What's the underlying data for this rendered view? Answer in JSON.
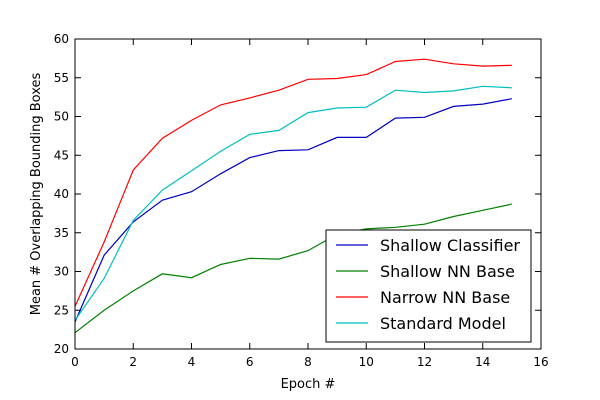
{
  "chart_data": {
    "type": "line",
    "title": "",
    "xlabel": "Epoch #",
    "ylabel": "Mean # Overlapping Bounding Boxes",
    "xlim": [
      0,
      16
    ],
    "ylim": [
      20,
      60
    ],
    "xticks": [
      0,
      2,
      4,
      6,
      8,
      10,
      12,
      14,
      16
    ],
    "yticks": [
      20,
      25,
      30,
      35,
      40,
      45,
      50,
      55,
      60
    ],
    "grid": false,
    "legend_position": "lower-right",
    "x": [
      0,
      1,
      2,
      3,
      4,
      5,
      6,
      7,
      8,
      9,
      10,
      11,
      12,
      13,
      14,
      15
    ],
    "series": [
      {
        "name": "Shallow Classifier",
        "color": "#0000bf",
        "values": [
          23.5,
          32.1,
          36.4,
          39.2,
          40.3,
          42.6,
          44.7,
          45.6,
          45.7,
          47.3,
          47.3,
          49.8,
          49.9,
          51.3,
          51.6,
          52.3
        ]
      },
      {
        "name": "Shallow NN Base",
        "color": "#008000",
        "values": [
          22.1,
          25.0,
          27.5,
          29.7,
          29.2,
          30.9,
          31.7,
          31.6,
          32.7,
          34.8,
          35.5,
          35.7,
          36.1,
          37.1,
          37.9,
          38.7
        ]
      },
      {
        "name": "Narrow NN Base",
        "color": "#ff0000",
        "values": [
          25.5,
          33.8,
          43.1,
          47.2,
          49.5,
          51.5,
          52.4,
          53.4,
          54.8,
          54.9,
          55.4,
          57.1,
          57.4,
          56.8,
          56.5,
          56.6
        ]
      },
      {
        "name": "Standard Model",
        "color": "#00bfbf",
        "values": [
          23.7,
          29.1,
          36.6,
          40.5,
          43.0,
          45.5,
          47.7,
          48.2,
          50.5,
          51.1,
          51.2,
          53.4,
          53.1,
          53.3,
          53.9,
          53.7
        ]
      }
    ]
  }
}
